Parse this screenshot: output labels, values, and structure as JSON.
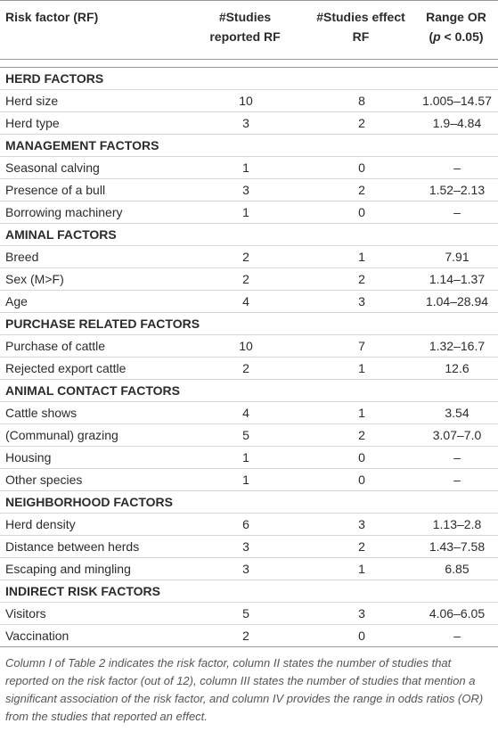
{
  "table": {
    "header": [
      {
        "lines": [
          [
            "Risk factor (RF)"
          ]
        ]
      },
      {
        "lines": [
          [
            "#Studies"
          ],
          [
            "reported RF"
          ]
        ]
      },
      {
        "lines": [
          [
            "#Studies effect"
          ],
          [
            "RF"
          ]
        ]
      },
      {
        "lines": [
          [
            "Range OR"
          ],
          [
            "(",
            {
              "text": "p",
              "italic": true
            },
            " < 0.05)"
          ]
        ]
      }
    ],
    "sections": [
      {
        "title": "HERD FACTORS",
        "rows": [
          [
            "Herd size",
            10,
            8,
            "1.005–14.57"
          ],
          [
            "Herd type",
            3,
            2,
            "1.9–4.84"
          ]
        ]
      },
      {
        "title": "MANAGEMENT FACTORS",
        "rows": [
          [
            "Seasonal calving",
            1,
            0,
            "–"
          ],
          [
            "Presence of a bull",
            3,
            2,
            "1.52–2.13"
          ],
          [
            "Borrowing machinery",
            1,
            0,
            "–"
          ]
        ]
      },
      {
        "title": "AMINAL FACTORS",
        "rows": [
          [
            "Breed",
            2,
            1,
            "7.91"
          ],
          [
            "Sex (M>F)",
            2,
            2,
            "1.14–1.37"
          ],
          [
            "Age",
            4,
            3,
            "1.04–28.94"
          ]
        ]
      },
      {
        "title": "PURCHASE RELATED FACTORS",
        "rows": [
          [
            "Purchase of cattle",
            10,
            7,
            "1.32–16.7"
          ],
          [
            "Rejected export cattle",
            2,
            1,
            "12.6"
          ]
        ]
      },
      {
        "title": "ANIMAL CONTACT FACTORS",
        "rows": [
          [
            "Cattle shows",
            4,
            1,
            "3.54"
          ],
          [
            "(Communal) grazing",
            5,
            2,
            "3.07–7.0"
          ],
          [
            "Housing",
            1,
            0,
            "–"
          ],
          [
            "Other species",
            1,
            0,
            "–"
          ]
        ]
      },
      {
        "title": "NEIGHBORHOOD FACTORS",
        "rows": [
          [
            "Herd density",
            6,
            3,
            "1.13–2.8"
          ],
          [
            "Distance between herds",
            3,
            2,
            "1.43–7.58"
          ],
          [
            "Escaping and mingling",
            3,
            1,
            "6.85"
          ]
        ]
      },
      {
        "title": "INDIRECT RISK FACTORS",
        "rows": [
          [
            "Visitors",
            5,
            3,
            "4.06–6.05"
          ],
          [
            "Vaccination",
            2,
            0,
            "–"
          ]
        ]
      }
    ],
    "caption": "Column I of Table 2 indicates the risk factor, column II states the number of studies that reported on the risk factor (out of 12), column III states the number of studies that mention a significant association of the risk factor, and column IV provides the range in odds ratios (OR) from the studies that reported an effect."
  }
}
